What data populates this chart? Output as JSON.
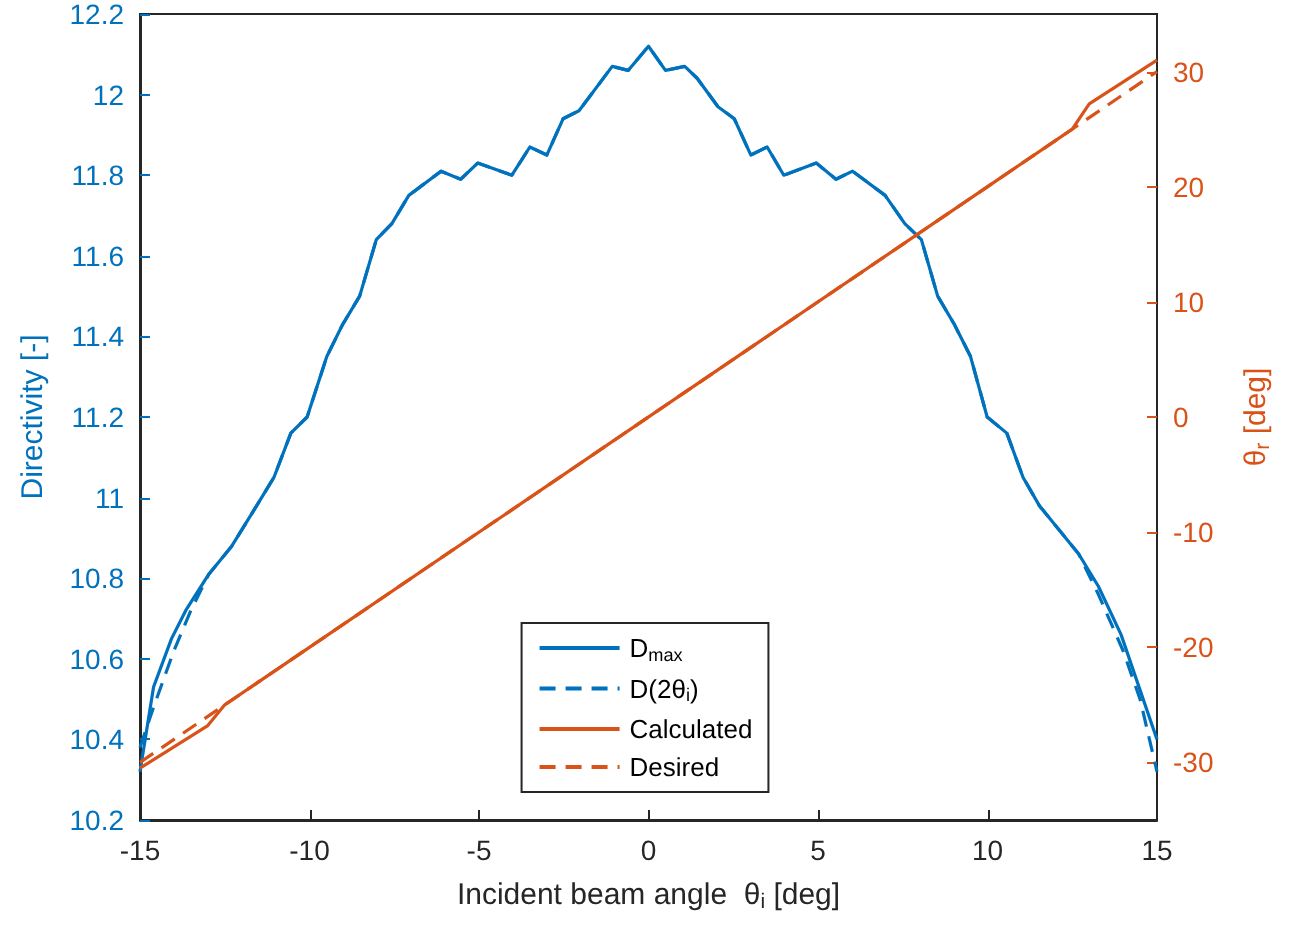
{
  "chart_data": {
    "type": "line",
    "xlabel": "Incident beam angle  θ$_{i}$ [deg]",
    "ylabel": "Directivity [-]",
    "y2label": "θ$_{r}$ [deg]",
    "xlim": [
      -15,
      15
    ],
    "xticks": [
      -15,
      -10,
      -5,
      0,
      5,
      10,
      15
    ],
    "ylim": [
      10.2,
      12.2
    ],
    "yticks": [
      10.2,
      10.4,
      10.6,
      10.8,
      11,
      11.2,
      11.4,
      11.6,
      11.8,
      12,
      12.2
    ],
    "y2lim": [
      -35,
      35
    ],
    "y2ticks": [
      -30,
      -20,
      -10,
      0,
      10,
      20,
      30
    ],
    "grid": false,
    "legend": "bottom",
    "marker": "none",
    "series": [
      {
        "name": "D$_{max}$",
        "color": "#0072bd",
        "line_style": "solid",
        "x": [
          -15,
          -14.6,
          -14.07,
          -13.65,
          -12.97,
          -12.29,
          -11.63,
          -11.05,
          -10.55,
          -10.07,
          -9.49,
          -9.02,
          -8.52,
          -8.03,
          -7.57,
          -7.07,
          -6.12,
          -5.54,
          -5.04,
          -4.03,
          -3.5,
          -3,
          -2.52,
          -2.05,
          -1.07,
          -0.6,
          0,
          0.5,
          1.07,
          1.44,
          2.05,
          2.53,
          3.02,
          3.5,
          3.99,
          4.95,
          5.53,
          6.02,
          6.98,
          7.56,
          8.05,
          8.53,
          9.02,
          9.5,
          9.99,
          10.57,
          11.05,
          11.53,
          12.69,
          13.27,
          13.94,
          15
        ],
        "values": [
          10.32,
          10.53,
          10.65,
          10.72,
          10.81,
          10.88,
          10.97,
          11.05,
          11.16,
          11.2,
          11.35,
          11.43,
          11.5,
          11.64,
          11.68,
          11.75,
          11.81,
          11.79,
          11.83,
          11.8,
          11.87,
          11.85,
          11.94,
          11.96,
          12.07,
          12.06,
          12.12,
          12.06,
          12.07,
          12.04,
          11.97,
          11.94,
          11.85,
          11.87,
          11.8,
          11.83,
          11.79,
          11.81,
          11.75,
          11.68,
          11.64,
          11.5,
          11.43,
          11.35,
          11.2,
          11.16,
          11.05,
          10.98,
          10.86,
          10.78,
          10.66,
          10.4
        ]
      },
      {
        "name": "D(2θ$_{i}$)",
        "color": "#0072bd",
        "line_style": "dashed",
        "x": [
          -15,
          -14.6,
          -14,
          -13.5,
          -12.97,
          -12.29,
          -11.63,
          -11.05,
          -10.55,
          -10.07,
          -9.49,
          -9.02,
          -8.52,
          -8.03,
          -7.57,
          -7.07,
          -6.12,
          -5.54,
          -5.04,
          -4.03,
          -3.5,
          -3,
          -2.52,
          -2.05,
          -1.07,
          -0.6,
          0,
          0.5,
          1.07,
          1.44,
          2.05,
          2.53,
          3.02,
          3.5,
          3.99,
          4.95,
          5.53,
          6.02,
          6.98,
          7.56,
          8.05,
          8.53,
          9.02,
          9.5,
          9.99,
          10.57,
          11.05,
          11.53,
          12.69,
          13.27,
          14,
          14.5,
          15
        ],
        "values": [
          10.38,
          10.48,
          10.62,
          10.72,
          10.81,
          10.88,
          10.97,
          11.05,
          11.16,
          11.2,
          11.35,
          11.43,
          11.5,
          11.64,
          11.68,
          11.75,
          11.81,
          11.79,
          11.83,
          11.8,
          11.87,
          11.85,
          11.94,
          11.96,
          12.07,
          12.06,
          12.12,
          12.06,
          12.07,
          12.04,
          11.97,
          11.94,
          11.85,
          11.87,
          11.8,
          11.83,
          11.79,
          11.81,
          11.75,
          11.68,
          11.64,
          11.5,
          11.43,
          11.35,
          11.2,
          11.16,
          11.05,
          10.98,
          10.86,
          10.76,
          10.62,
          10.5,
          10.32
        ]
      },
      {
        "name": "Calculated",
        "color": "#d95319",
        "line_style": "solid",
        "axis": "y2",
        "x": [
          -15,
          -13,
          -12.5,
          12.5,
          13,
          15
        ],
        "values": [
          -30.5,
          -26.8,
          -25,
          25,
          27.2,
          31
        ]
      },
      {
        "name": "Desired",
        "color": "#d95319",
        "line_style": "dashed",
        "axis": "y2",
        "x": [
          -15,
          15
        ],
        "values": [
          -30,
          30
        ]
      }
    ]
  }
}
